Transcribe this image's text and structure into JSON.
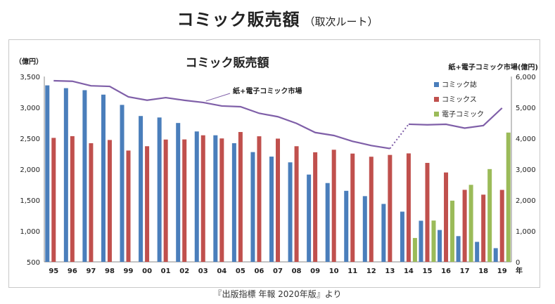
{
  "page": {
    "title": "コミック販売額",
    "subtitle": "（取次ルート）",
    "source": "『出版指標 年報 2020年版』より"
  },
  "colors": {
    "magazine": "#4a7ebb",
    "comics": "#c0504d",
    "digital": "#9bbb59",
    "market_line": "#7f5fa8"
  },
  "chart_data": {
    "type": "bar",
    "title": "コミック販売額",
    "left_axis_unit": "（億円）",
    "right_axis_unit": "紙+電子コミック市場(億円)",
    "x_unit": "年",
    "categories": [
      "95",
      "96",
      "97",
      "98",
      "99",
      "00",
      "01",
      "02",
      "03",
      "04",
      "05",
      "06",
      "07",
      "08",
      "09",
      "10",
      "11",
      "12",
      "13",
      "14",
      "15",
      "16",
      "17",
      "18",
      "19"
    ],
    "y_left_ticks": [
      "500",
      "1,000",
      "1,500",
      "2,000",
      "2,500",
      "3,000",
      "3,500"
    ],
    "y_right_ticks": [
      "0",
      "1,000",
      "2,000",
      "3,000",
      "4,000",
      "5,000",
      "6,000"
    ],
    "y_left_lim": [
      500,
      3500
    ],
    "y_right_lim": [
      0,
      6000
    ],
    "series": [
      {
        "name": "コミック誌",
        "axis": "left",
        "values": [
          3357,
          3312,
          3279,
          3207,
          3041,
          2861,
          2837,
          2748,
          2611,
          2549,
          2421,
          2277,
          2204,
          2111,
          1913,
          1776,
          1650,
          1564,
          1438,
          1313,
          1166,
          1016,
          917,
          824,
          722
        ]
      },
      {
        "name": "コミックス",
        "axis": "left",
        "values": [
          2507,
          2535,
          2421,
          2473,
          2302,
          2372,
          2480,
          2482,
          2549,
          2498,
          2602,
          2533,
          2495,
          2372,
          2274,
          2315,
          2253,
          2202,
          2231,
          2256,
          2102,
          1947,
          1666,
          1588,
          1665
        ]
      },
      {
        "name": "電子コミック",
        "axis": "left",
        "values": [
          null,
          null,
          null,
          null,
          null,
          null,
          null,
          null,
          null,
          null,
          null,
          null,
          null,
          null,
          null,
          null,
          null,
          null,
          null,
          887,
          1169,
          1491,
          1747,
          2002,
          2593
        ]
      }
    ],
    "market_series": {
      "name": "紙+電子コミック市場",
      "axis": "right",
      "values": [
        5864,
        5847,
        5700,
        5680,
        5343,
        5233,
        5317,
        5230,
        5160,
        5047,
        5023,
        4810,
        4699,
        4483,
        4187,
        4091,
        3903,
        3766,
        3669,
        4456,
        4437,
        4454,
        4330,
        4414,
        4980
      ],
      "dashed_segment": [
        "13",
        "14"
      ]
    }
  }
}
